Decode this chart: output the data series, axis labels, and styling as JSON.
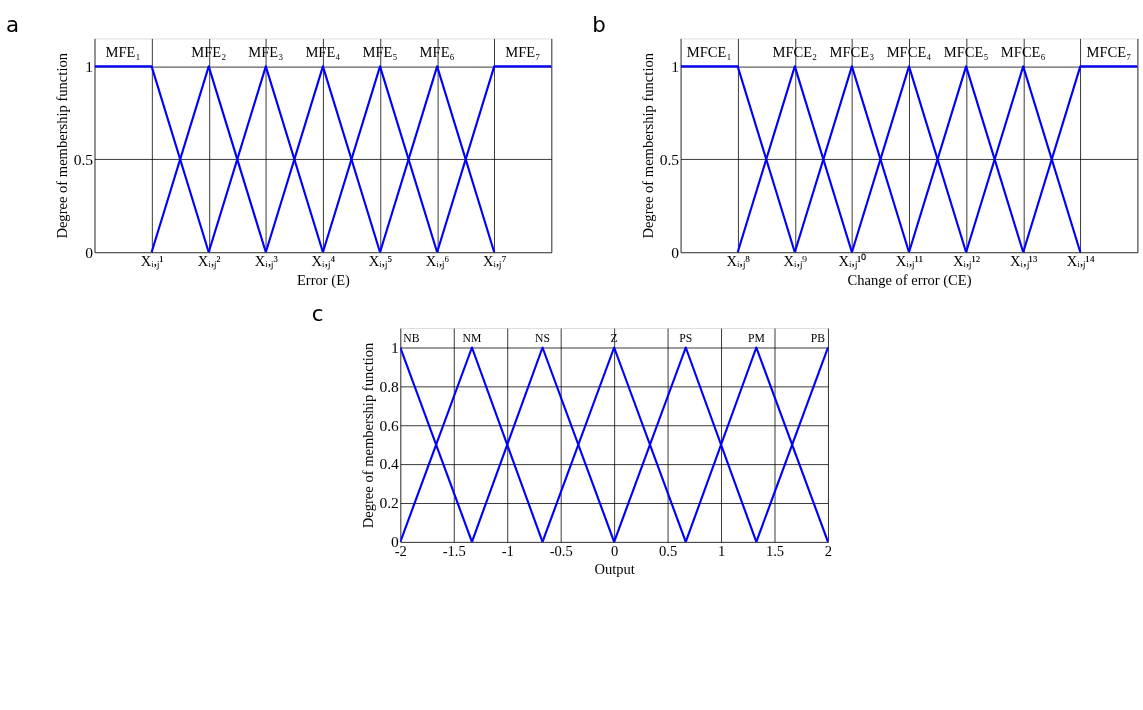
{
  "chart_data": [
    {
      "type": "line",
      "title": "a",
      "xlabel": "Error (E)",
      "ylabel": "Degree of membership function",
      "categories": [
        null,
        "Xᵢ,ⱼ¹",
        "Xᵢ,ⱼ²",
        "Xᵢ,ⱼ³",
        "Xᵢ,ⱼ⁴",
        "Xᵢ,ⱼ⁵",
        "Xᵢ,ⱼ⁶",
        "Xᵢ,ⱼ⁷",
        null
      ],
      "ylim": [
        0,
        1.15
      ],
      "yticks": [
        0,
        0.5,
        1
      ],
      "grid": true,
      "legend": false,
      "marker": "none",
      "line_style": "solid",
      "series": [
        {
          "name": "MFE₁",
          "color": "#0000ff",
          "values": [
            1,
            1,
            0,
            null,
            null,
            null,
            null,
            null,
            null
          ]
        },
        {
          "name": "MFE₂",
          "color": "#0000ff",
          "values": [
            null,
            0,
            1,
            0,
            null,
            null,
            null,
            null,
            null
          ]
        },
        {
          "name": "MFE₃",
          "color": "#0000ff",
          "values": [
            null,
            null,
            0,
            1,
            0,
            null,
            null,
            null,
            null
          ]
        },
        {
          "name": "MFE₄",
          "color": "#0000ff",
          "values": [
            null,
            null,
            null,
            0,
            1,
            0,
            null,
            null,
            null
          ]
        },
        {
          "name": "MFE₅",
          "color": "#0000ff",
          "values": [
            null,
            null,
            null,
            null,
            0,
            1,
            0,
            null,
            null
          ]
        },
        {
          "name": "MFE₆",
          "color": "#0000ff",
          "values": [
            null,
            null,
            null,
            null,
            null,
            0,
            1,
            0,
            null
          ]
        },
        {
          "name": "MFE₇",
          "color": "#0000ff",
          "values": [
            null,
            null,
            null,
            null,
            null,
            null,
            0,
            1,
            1
          ]
        }
      ]
    },
    {
      "type": "line",
      "title": "b",
      "xlabel": "Change of error (CE)",
      "ylabel": "Degree of membership function",
      "categories": [
        null,
        "Xᵢ,ⱼ⁸",
        "Xᵢ,ⱼ⁹",
        "Xᵢ,ⱼ¹⁰",
        "Xᵢ,ⱼ¹¹",
        "Xᵢ,ⱼ¹²",
        "Xᵢ,ⱼ¹³",
        "Xᵢ,ⱼ¹⁴",
        null
      ],
      "ylim": [
        0,
        1.15
      ],
      "yticks": [
        0,
        0.5,
        1
      ],
      "grid": true,
      "legend": false,
      "marker": "none",
      "line_style": "solid",
      "series": [
        {
          "name": "MFCE₁",
          "color": "#0000ff",
          "values": [
            1,
            1,
            0,
            null,
            null,
            null,
            null,
            null,
            null
          ]
        },
        {
          "name": "MFCE₂",
          "color": "#0000ff",
          "values": [
            null,
            0,
            1,
            0,
            null,
            null,
            null,
            null,
            null
          ]
        },
        {
          "name": "MFCE₃",
          "color": "#0000ff",
          "values": [
            null,
            null,
            0,
            1,
            0,
            null,
            null,
            null,
            null
          ]
        },
        {
          "name": "MFCE₄",
          "color": "#0000ff",
          "values": [
            null,
            null,
            null,
            0,
            1,
            0,
            null,
            null,
            null
          ]
        },
        {
          "name": "MFCE₅",
          "color": "#0000ff",
          "values": [
            null,
            null,
            null,
            null,
            0,
            1,
            0,
            null,
            null
          ]
        },
        {
          "name": "MFCE₆",
          "color": "#0000ff",
          "values": [
            null,
            null,
            null,
            null,
            null,
            0,
            1,
            0,
            null
          ]
        },
        {
          "name": "MFCE₇",
          "color": "#0000ff",
          "values": [
            null,
            null,
            null,
            null,
            null,
            null,
            0,
            1,
            1
          ]
        }
      ]
    },
    {
      "type": "line",
      "title": "c",
      "xlabel": "Output",
      "ylabel": "Degree of membership function",
      "xlim": [
        -2,
        2
      ],
      "ylim": [
        0,
        1.1
      ],
      "xticks": [
        -2,
        -1.5,
        -1,
        -0.5,
        0,
        0.5,
        1,
        1.5,
        2
      ],
      "yticks": [
        0,
        0.2,
        0.4,
        0.6,
        0.8,
        1
      ],
      "grid": true,
      "legend": false,
      "marker": "none",
      "line_style": "solid",
      "series": [
        {
          "name": "NB",
          "color": "#0000ff",
          "x": [
            -2,
            -1.33
          ],
          "values": [
            1,
            0
          ]
        },
        {
          "name": "NM",
          "color": "#0000ff",
          "x": [
            -2,
            -1.33,
            -0.67
          ],
          "values": [
            0,
            1,
            0
          ]
        },
        {
          "name": "NS",
          "color": "#0000ff",
          "x": [
            -1.33,
            -0.67,
            0
          ],
          "values": [
            0,
            1,
            0
          ]
        },
        {
          "name": "Z",
          "color": "#0000ff",
          "x": [
            -0.67,
            0,
            0.67
          ],
          "values": [
            0,
            1,
            0
          ]
        },
        {
          "name": "PS",
          "color": "#0000ff",
          "x": [
            0,
            0.67,
            1.33
          ],
          "values": [
            0,
            1,
            0
          ]
        },
        {
          "name": "PM",
          "color": "#0000ff",
          "x": [
            0.67,
            1.33,
            2
          ],
          "values": [
            0,
            1,
            0
          ]
        },
        {
          "name": "PB",
          "color": "#0000ff",
          "x": [
            1.33,
            2
          ],
          "values": [
            0,
            1
          ]
        }
      ]
    }
  ]
}
